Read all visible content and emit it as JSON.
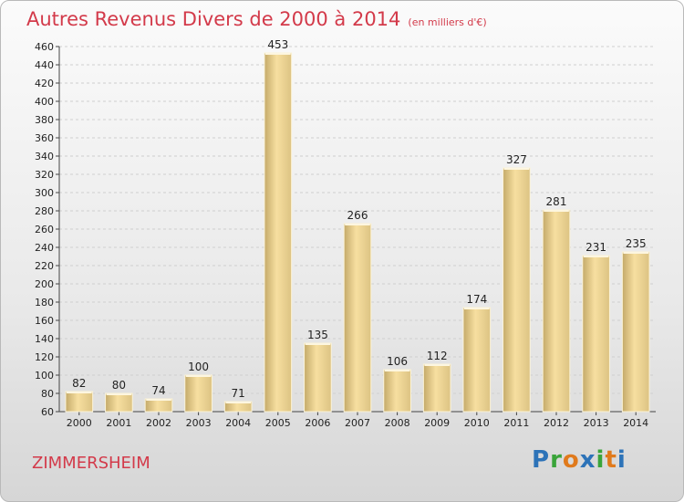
{
  "page": {
    "title": "Autres Revenus Divers de 2000 à 2014",
    "unit": "(en milliers d'€)",
    "city": "ZIMMERSHEIM",
    "logo": "Proxiti",
    "colors": {
      "title": "#d33a4a",
      "bar_light": "#f7dfa0",
      "bar_dark": "#c4aa6a"
    }
  },
  "chart_data": {
    "type": "bar",
    "categories": [
      "2000",
      "2001",
      "2002",
      "2003",
      "2004",
      "2005",
      "2006",
      "2007",
      "2008",
      "2009",
      "2010",
      "2011",
      "2012",
      "2013",
      "2014"
    ],
    "values": [
      82,
      80,
      74,
      100,
      71,
      453,
      135,
      266,
      106,
      112,
      174,
      327,
      281,
      231,
      235
    ],
    "ylim": [
      60,
      460
    ],
    "yticks": [
      60,
      80,
      100,
      120,
      140,
      160,
      180,
      200,
      220,
      240,
      260,
      280,
      300,
      320,
      340,
      360,
      380,
      400,
      420,
      440,
      460
    ],
    "grid": true
  }
}
